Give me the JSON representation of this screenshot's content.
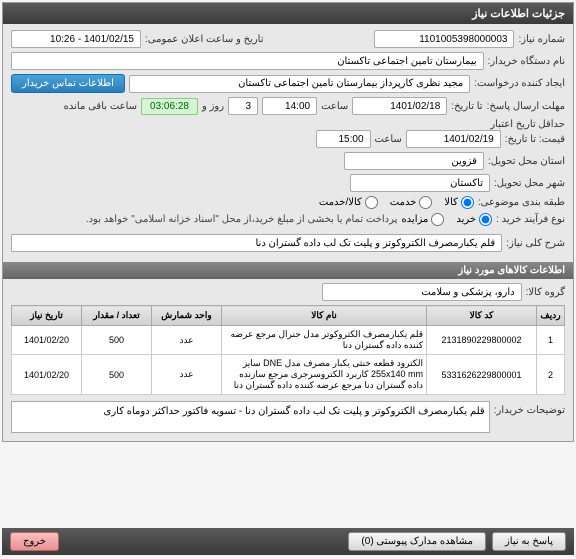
{
  "panel_title": "جزئیات اطلاعات نیاز",
  "fields": {
    "need_no_label": "شماره نیاز:",
    "need_no": "1101005398000003",
    "buyer_org_label": "نام دستگاه خریدار:",
    "buyer_org": "بیمارستان تامین اجتماعی تاکستان",
    "requester_label": "ایجاد کننده درخواست:",
    "requester": "مجید نظری کارپرداز بیمارستان تامین اجتماعی تاکستان",
    "contact_btn": "اطلاعات تماس خریدار",
    "announce_label": "تاریخ و ساعت اعلان عمومی:",
    "announce": "1401/02/15 - 10:26",
    "deadline_label": "مهلت ارسال پاسخ:",
    "to_date_label": "تا تاریخ:",
    "deadline_date": "1401/02/18",
    "time_label": "ساعت",
    "deadline_time": "14:00",
    "day_label": "روز و",
    "days_left": "3",
    "remain_label": "ساعت باقی مانده",
    "countdown": "03:06:28",
    "validity_label": "حداقل تاریخ اعتبار",
    "price_to_label": "قیمت: تا تاریخ:",
    "validity_date": "1401/02/19",
    "validity_time": "15:00",
    "province_label": "استان محل تحویل:",
    "province": "قزوین",
    "city_label": "شهر محل تحویل:",
    "city": "تاکستان",
    "category_label": "طبقه بندی موضوعی:",
    "cat_goods": "کالا",
    "cat_service": "خدمت",
    "cat_both": "کالا/خدمت",
    "process_label": "نوع فرآیند خرید :",
    "proc_buy": "خرید",
    "proc_auction": "مزایده",
    "payment_note": "پرداخت تمام یا بخشی از مبلغ خرید،از محل \"اسناد خزانه اسلامی\" خواهد بود."
  },
  "summary": {
    "label": "شرح کلی نیاز:",
    "text": "قلم یکبارمصرف الکتروکوتر و پلیت تک لب داده گستران دنا"
  },
  "items_section": {
    "header": "اطلاعات کالاهای مورد نیاز",
    "group_label": "گروه کالا:",
    "group": "دارو، پزشکی و سلامت"
  },
  "table": {
    "headers": {
      "idx": "ردیف",
      "code": "کد کالا",
      "name": "نام کالا",
      "unit": "واحد شمارش",
      "qty": "تعداد / مقدار",
      "date": "تاریخ نیاز"
    },
    "rows": [
      {
        "idx": "1",
        "code": "2131890229800002",
        "name": "قلم یکبارمصرف الکتروکوتر مدل جنرال مرجع عرضه کننده داده گستران دنا",
        "unit": "عدد",
        "qty": "500",
        "date": "1401/02/20"
      },
      {
        "idx": "2",
        "code": "5331626229800001",
        "name": "الکترود قطعه خنثی یکبار مصرف مدل DNE سایز 255x140 mm کاربرد الکتروسرجری مرجع سازنده داده گستران دنا مرجع عرضه کننده داده گستران دنا",
        "unit": "عدد",
        "qty": "500",
        "date": "1401/02/20"
      }
    ]
  },
  "buyer_notes": {
    "label": "توضیحات خریدار:",
    "text": "قلم یکبارمصرف الکتروکوتر و پلیت تک لب داده گستران دنا - تسویه فاکتور حداکثر دوماه کاری"
  },
  "footer": {
    "reply": "پاسخ به نیاز",
    "attachments": "مشاهده مدارک پیوستی (0)",
    "exit": "خروج"
  },
  "colors": {
    "header_bg": "#4a4a4a",
    "accent": "#2a7db8"
  }
}
